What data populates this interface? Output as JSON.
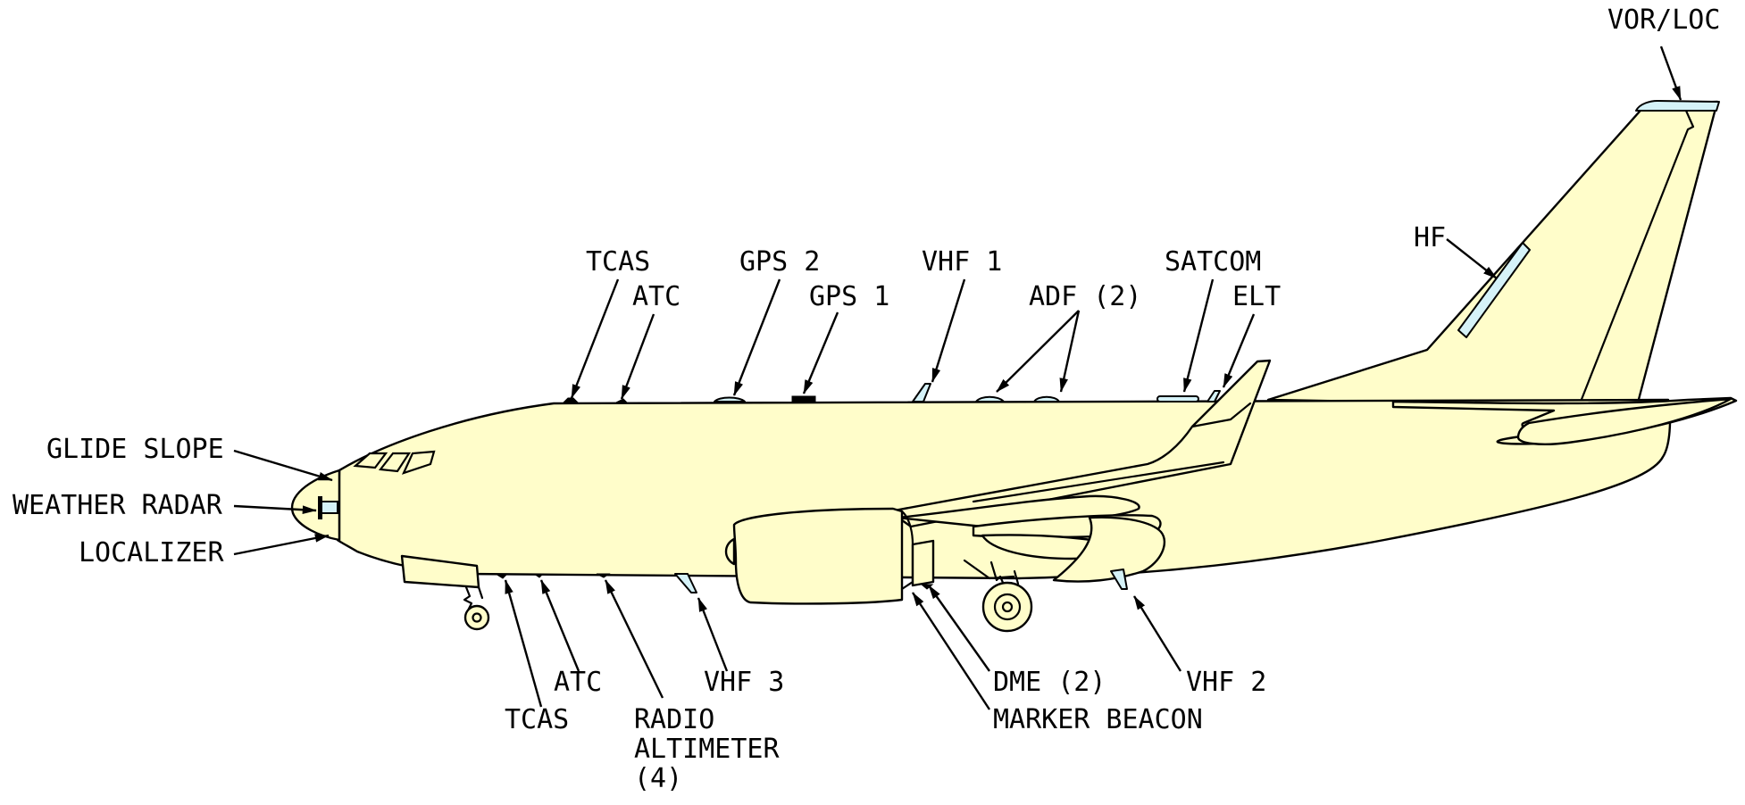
{
  "colors": {
    "fuselage": "#fffdca",
    "antenna": "#d5f2f8",
    "outline": "#000000"
  },
  "labels": {
    "vor_loc": "VOR/LOC",
    "hf": "HF",
    "tcas_top": "TCAS",
    "atc_top": "ATC",
    "gps2": "GPS 2",
    "gps1": "GPS 1",
    "vhf1": "VHF 1",
    "adf": "ADF (2)",
    "satcom": "SATCOM",
    "elt": "ELT",
    "glide_slope": "GLIDE SLOPE",
    "weather_radar": "WEATHER RADAR",
    "localizer": "LOCALIZER",
    "atc_bottom": "ATC",
    "tcas_bottom": "TCAS",
    "radio_altimeter_1": "RADIO",
    "radio_altimeter_2": "ALTIMETER",
    "radio_altimeter_3": "(4)",
    "vhf3": "VHF 3",
    "dme": "DME (2)",
    "marker_beacon": "MARKER BEACON",
    "vhf2": "VHF 2"
  }
}
